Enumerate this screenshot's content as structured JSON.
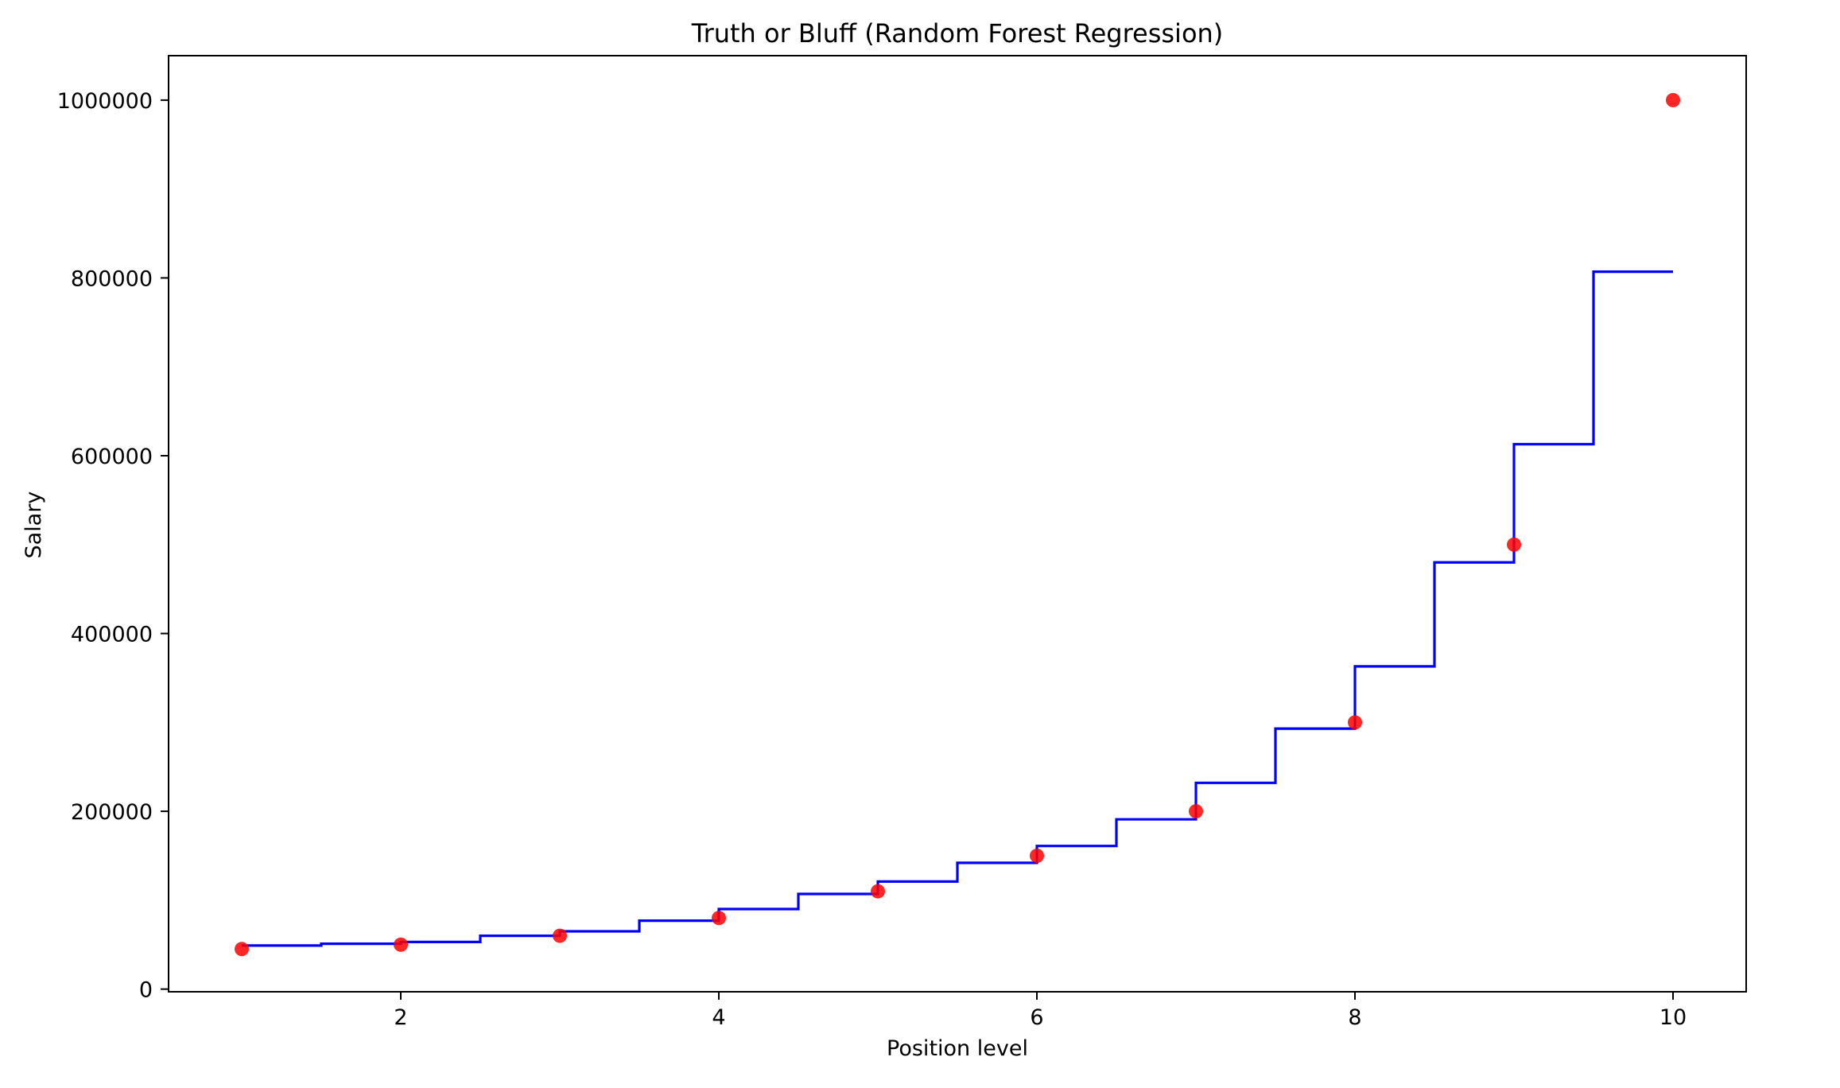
{
  "chart_data": {
    "type": "scatter",
    "title": "Truth or Bluff (Random Forest Regression)",
    "xlabel": "Position level",
    "ylabel": "Salary",
    "xlim": [
      0.54,
      10.46
    ],
    "ylim": [
      -3000,
      1050000
    ],
    "x_ticks": [
      2,
      4,
      6,
      8,
      10
    ],
    "y_ticks": [
      0,
      200000,
      400000,
      600000,
      800000,
      1000000
    ],
    "x_tick_labels": [
      "2",
      "4",
      "6",
      "8",
      "10"
    ],
    "y_tick_labels": [
      "0",
      "200000",
      "400000",
      "600000",
      "800000",
      "1000000"
    ],
    "grid": false,
    "scatter": {
      "color": "#ff0000",
      "x": [
        1,
        2,
        3,
        4,
        5,
        6,
        7,
        8,
        9,
        10
      ],
      "y": [
        45000,
        50000,
        60000,
        80000,
        110000,
        150000,
        200000,
        300000,
        500000,
        1000000
      ]
    },
    "line": {
      "color": "#0000ff",
      "type": "step",
      "x": [
        1.0,
        1.5,
        1.5,
        2.0,
        2.0,
        2.5,
        2.5,
        3.0,
        3.0,
        3.5,
        3.5,
        4.0,
        4.0,
        4.5,
        4.5,
        5.0,
        5.0,
        5.5,
        5.5,
        6.0,
        6.0,
        6.5,
        6.5,
        7.0,
        7.0,
        7.5,
        7.5,
        8.0,
        8.0,
        8.5,
        8.5,
        9.0,
        9.0,
        9.5,
        9.5,
        10.0
      ],
      "y": [
        49000,
        49000,
        51000,
        51000,
        53000,
        53000,
        60000,
        60000,
        65000,
        65000,
        77000,
        77000,
        90000,
        90000,
        107000,
        107000,
        121000,
        121000,
        142000,
        142000,
        161000,
        161000,
        191000,
        191000,
        232000,
        232000,
        293000,
        293000,
        363000,
        363000,
        480000,
        480000,
        613000,
        613000,
        807000,
        807000
      ]
    }
  }
}
